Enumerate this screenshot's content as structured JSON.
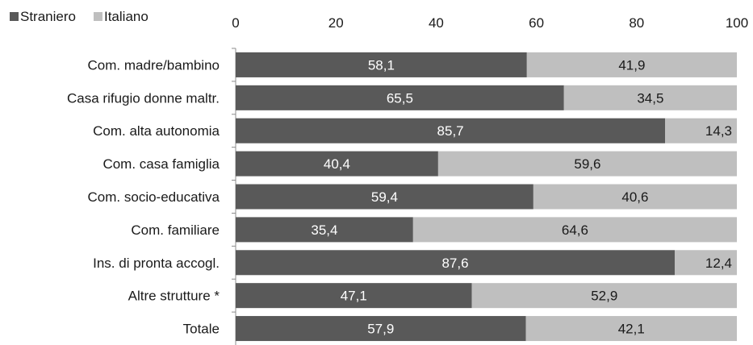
{
  "chart_data": {
    "type": "bar",
    "orientation": "horizontal",
    "stacked": true,
    "categories": [
      "Com. madre/bambino",
      "Casa rifugio donne maltr.",
      "Com. alta autonomia",
      "Com. casa famiglia",
      "Com. socio-educativa",
      "Com. familiare",
      "Ins. di pronta accogl.",
      "Altre strutture *",
      "Totale"
    ],
    "series": [
      {
        "name": "Straniero",
        "values": [
          58.1,
          65.5,
          85.7,
          40.4,
          59.4,
          35.4,
          87.6,
          47.1,
          57.9
        ],
        "labels": [
          "58,1",
          "65,5",
          "85,7",
          "40,4",
          "59,4",
          "35,4",
          "87,6",
          "47,1",
          "57,9"
        ],
        "color": "#595959",
        "label_color": "#ffffff"
      },
      {
        "name": "Italiano",
        "values": [
          41.9,
          34.5,
          14.3,
          59.6,
          40.6,
          64.6,
          12.4,
          52.9,
          42.1
        ],
        "labels": [
          "41,9",
          "34,5",
          "14,3",
          "59,6",
          "40,6",
          "64,6",
          "12,4",
          "52,9",
          "42,1"
        ],
        "color": "#bfbfbf",
        "label_color": "#1a1a1a"
      }
    ],
    "xlim": [
      0,
      100
    ],
    "xticks": [
      0,
      20,
      40,
      60,
      80,
      100
    ],
    "xtick_labels": [
      "0",
      "20",
      "40",
      "60",
      "80",
      "100"
    ],
    "x_axis_position": "top",
    "grid": false,
    "legend_position": "top-left",
    "title": "",
    "xlabel": "",
    "ylabel": ""
  }
}
